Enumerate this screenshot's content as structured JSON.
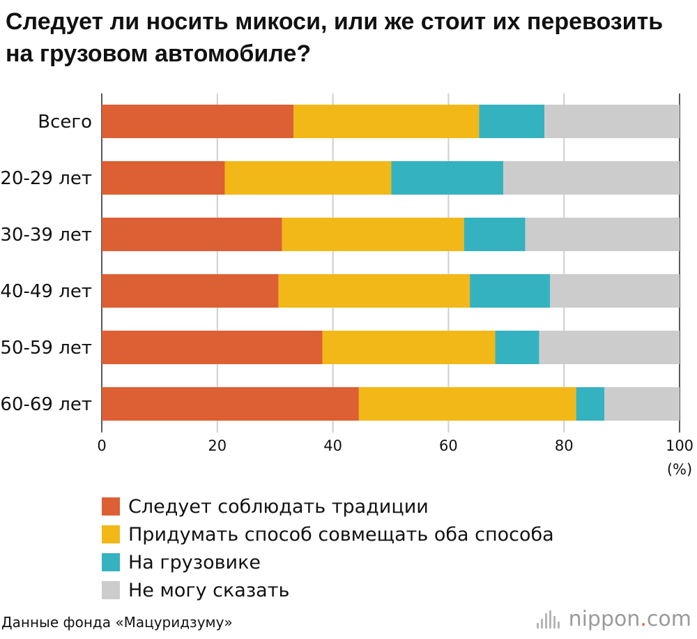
{
  "title": "Следует ли носить микоси, или же стоит их перевозить на грузовом автомобиле?",
  "source": "Данные фонда «Мацуридзуму»",
  "brand": {
    "name": "nippon",
    "dot": ".",
    "suffix": "com"
  },
  "chart_data": {
    "type": "bar",
    "orientation": "horizontal",
    "stacked": true,
    "categories": [
      "Всего",
      "20-29 лет",
      "30-39 лет",
      "40-49 лет",
      "50-59 лет",
      "60-69 лет"
    ],
    "series": [
      {
        "name": "Следует соблюдать традиции",
        "color": "#dd5f34",
        "values": [
          33.2,
          21.3,
          31.2,
          30.6,
          38.2,
          44.5
        ]
      },
      {
        "name": "Придумать способ совмещать оба способа",
        "color": "#f2b817",
        "values": [
          32.1,
          28.8,
          31.5,
          33.1,
          29.9,
          37.6
        ]
      },
      {
        "name": "На грузовике",
        "color": "#35b2c0",
        "values": [
          11.3,
          19.4,
          10.6,
          13.9,
          7.6,
          4.9
        ]
      },
      {
        "name": "Не могу сказать",
        "color": "#cccccc",
        "values": [
          23.4,
          30.5,
          26.7,
          22.4,
          24.3,
          13.0
        ]
      }
    ],
    "xlim": [
      0,
      100
    ],
    "xticks": [
      0,
      20,
      40,
      60,
      80,
      100
    ],
    "xticklabels": [
      "0",
      "20",
      "40",
      "60",
      "80",
      "100"
    ],
    "xunit": "(%)",
    "grid": true,
    "legend_position": "bottom-left"
  }
}
